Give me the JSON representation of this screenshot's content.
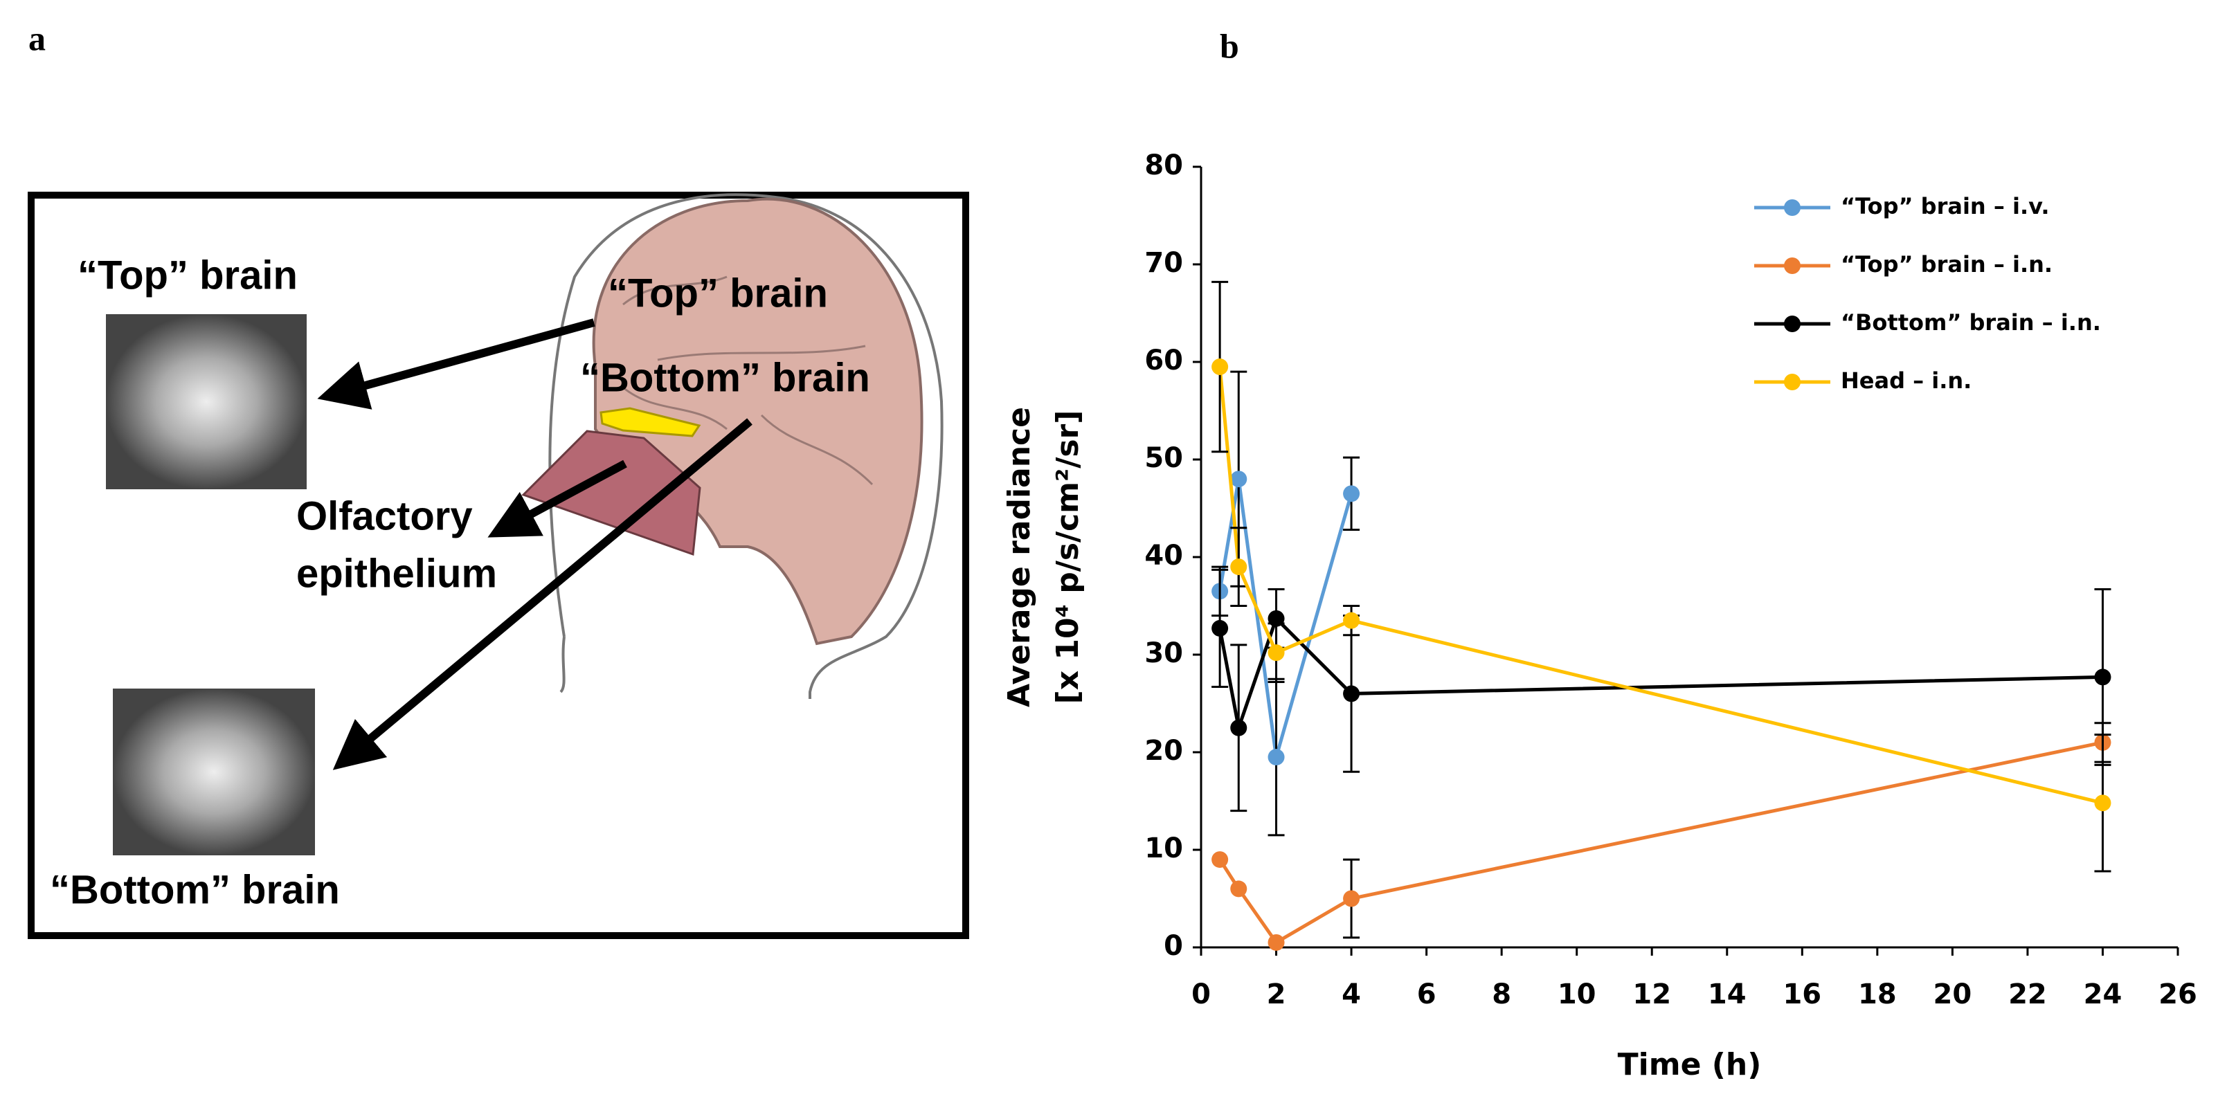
{
  "panel_a": {
    "label": "a",
    "photo_top_label": "“Top” brain",
    "brain_top_label": "“Top” brain",
    "brain_bottom_label": "“Bottom” brain",
    "olfactory_line1": "Olfactory",
    "olfactory_line2": "epithelium",
    "photo_bottom_label": "“Bottom” brain"
  },
  "chart_data": {
    "type": "line",
    "panel_label": "b",
    "x_label": "Time (h)",
    "y_label_line1": "Average radiance",
    "y_label_line2": "[x 10⁴ p/s/cm²/sr]",
    "x": [
      0.5,
      1,
      2,
      4,
      24
    ],
    "series": [
      {
        "name": "“Top” brain – i.v.",
        "color": "#5b9bd5",
        "values": [
          36.5,
          48,
          19.5,
          46.5,
          null
        ],
        "errors": [
          2.5,
          11,
          8,
          3.7,
          null
        ]
      },
      {
        "name": "“Top” brain – i.n.",
        "color": "#ed7d31",
        "values": [
          9,
          6,
          0.5,
          5,
          21
        ],
        "errors": [
          null,
          null,
          null,
          4,
          2
        ]
      },
      {
        "name": "“Bottom” brain – i.n.",
        "color": "#000000",
        "values": [
          32.7,
          22.5,
          33.7,
          26,
          27.7
        ],
        "errors": [
          6,
          8.5,
          3,
          8,
          9
        ]
      },
      {
        "name": "Head – i.n.",
        "color": "#ffc000",
        "values": [
          59.5,
          39,
          30.2,
          33.5,
          14.8
        ],
        "errors": [
          8.7,
          4,
          3,
          1.5,
          7
        ]
      }
    ],
    "xlim": [
      0,
      26
    ],
    "xticks": [
      0,
      2,
      4,
      6,
      8,
      10,
      12,
      14,
      16,
      18,
      20,
      22,
      24,
      26
    ],
    "ylim": [
      0,
      80
    ],
    "yticks": [
      0,
      10,
      20,
      30,
      40,
      50,
      60,
      70,
      80
    ],
    "legend": "upper right"
  }
}
